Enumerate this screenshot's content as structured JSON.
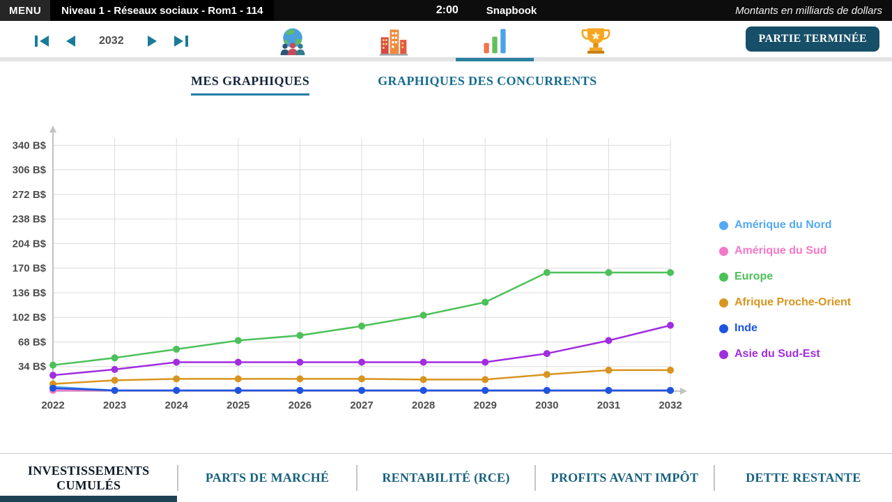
{
  "top_bar": {
    "menu": "MENU",
    "level": "Niveau 1 - Réseaux sociaux - Rom1 - 114",
    "timer": "2:00",
    "app": "Snapbook",
    "note": "Montants en milliards de dollars"
  },
  "toolbar": {
    "year": "2032",
    "end_button": "PARTIE TERMINÉE",
    "accent": "#2b7fa0",
    "icons": [
      "world-markets",
      "city",
      "charts",
      "rankings"
    ],
    "selected_icon": "charts"
  },
  "tabs": {
    "my_charts": "MES GRAPHIQUES",
    "competitor_charts": "GRAPHIQUES DES CONCURRENTS"
  },
  "chart_data": {
    "type": "line",
    "title": "INVESTISSEMENTS CUMULÉS",
    "xlabel": "",
    "ylabel": "B$",
    "x": [
      2022,
      2023,
      2024,
      2025,
      2026,
      2027,
      2028,
      2029,
      2030,
      2031,
      2032
    ],
    "ylim": [
      0,
      350
    ],
    "yticks": [
      34,
      68,
      102,
      136,
      170,
      204,
      238,
      272,
      306,
      340
    ],
    "ytick_suffix": " B$",
    "grid": true,
    "legend_position": "right",
    "series": [
      {
        "name": "Amérique du Nord",
        "color": "#55a9f2",
        "values": [
          6,
          1,
          1,
          1,
          1,
          1,
          1,
          1,
          1,
          1,
          1
        ]
      },
      {
        "name": "Amérique du Sud",
        "color": "#f478c8",
        "values": [
          1,
          1,
          1,
          1,
          1,
          1,
          1,
          1,
          1,
          1,
          1
        ]
      },
      {
        "name": "Europe",
        "color": "#4cc15a",
        "values": [
          36,
          46,
          58,
          70,
          77,
          90,
          105,
          123,
          164,
          164,
          164
        ]
      },
      {
        "name": "Afrique Proche-Orient",
        "color": "#d8941f",
        "values": [
          10,
          15,
          17,
          17,
          17,
          17,
          16,
          16,
          23,
          29,
          29
        ]
      },
      {
        "name": "Inde",
        "color": "#1d55e0",
        "values": [
          4,
          1,
          1,
          1,
          1,
          1,
          1,
          1,
          1,
          1,
          1
        ]
      },
      {
        "name": "Asie du Sud-Est",
        "color": "#a02de0",
        "values": [
          22,
          30,
          40,
          40,
          40,
          40,
          40,
          40,
          52,
          70,
          91
        ]
      }
    ]
  },
  "bottom_tabs": [
    {
      "label": "INVESTISSEMENTS CUMULÉS",
      "active": true
    },
    {
      "label": "PARTS DE MARCHÉ",
      "active": false
    },
    {
      "label": "RENTABILITÉ (RCE)",
      "active": false
    },
    {
      "label": "PROFITS AVANT IMPÔT",
      "active": false
    },
    {
      "label": "DETTE RESTANTE",
      "active": false
    }
  ]
}
